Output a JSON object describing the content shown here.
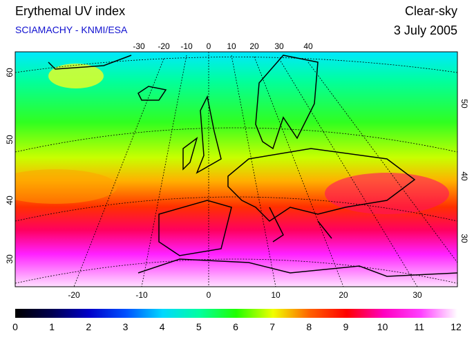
{
  "header": {
    "title": "Erythemal UV index",
    "source": "SCIAMACHY - KNMI/ESA",
    "condition": "Clear-sky",
    "date": "3 July 2005"
  },
  "map": {
    "top_labels": [
      -30,
      -20,
      -10,
      0,
      10,
      20,
      30,
      40
    ],
    "bottom_labels": [
      -20,
      -10,
      0,
      10,
      20,
      30
    ],
    "left_labels": [
      60,
      50,
      40,
      30
    ],
    "right_labels": [
      50,
      40,
      30
    ]
  },
  "colorbar": {
    "lim": [
      0,
      12
    ],
    "ticks": [
      0,
      1,
      2,
      3,
      4,
      5,
      6,
      7,
      8,
      9,
      10,
      11,
      12
    ],
    "colors": [
      "#000000",
      "#000050",
      "#0000c8",
      "#0050ff",
      "#00d8ff",
      "#00ffa0",
      "#20ff00",
      "#f0ff00",
      "#ff6000",
      "#ff0000",
      "#ff00c0",
      "#ff40ff",
      "#ffffff"
    ]
  }
}
